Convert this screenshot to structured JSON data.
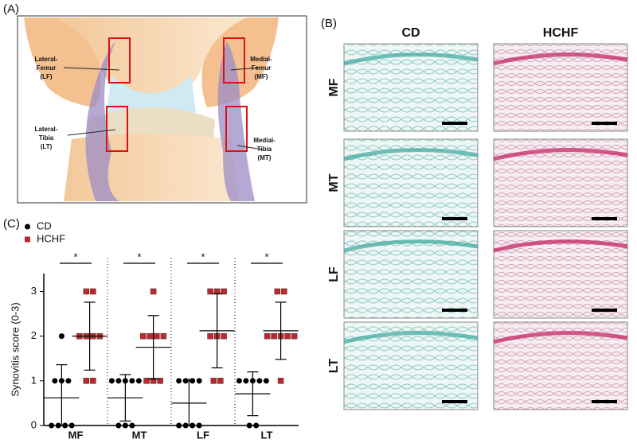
{
  "panel_a": {
    "label": "(A)",
    "regions": [
      {
        "lines": [
          "Lateral-",
          "Femur",
          "(LF)"
        ]
      },
      {
        "lines": [
          "Medial-",
          "Femur",
          "(MF)"
        ]
      },
      {
        "lines": [
          "Lateral-",
          "Tibia",
          "(LT)"
        ]
      },
      {
        "lines": [
          "Medial-",
          "Tibia",
          "(MT)"
        ]
      }
    ]
  },
  "panel_b": {
    "label": "(B)",
    "columns": [
      "CD",
      "HCHF"
    ],
    "rows": [
      "MF",
      "MT",
      "LF",
      "LT"
    ]
  },
  "chart_data": {
    "type": "dot",
    "panel_label": "(C)",
    "ylabel": "Synovitis score (0-3)",
    "categories": [
      "MF",
      "MT",
      "LF",
      "LT"
    ],
    "ylim": [
      0,
      3.4
    ],
    "yticks": [
      0,
      1,
      2,
      3
    ],
    "significance": [
      "*",
      "*",
      "*",
      "*"
    ],
    "legend": "top-left",
    "series": [
      {
        "name": "CD",
        "color": "#000000",
        "marker": "circle",
        "values": [
          [
            2,
            1,
            1,
            1,
            0,
            0,
            0,
            0
          ],
          [
            1,
            1,
            1,
            1,
            1,
            0,
            0,
            0
          ],
          [
            1,
            1,
            1,
            1,
            0,
            0,
            0,
            0
          ],
          [
            1,
            1,
            1,
            1,
            1,
            0,
            0
          ]
        ],
        "means": [
          0.62,
          0.62,
          0.5,
          0.71
        ],
        "sds": [
          0.74,
          0.52,
          0.53,
          0.49
        ]
      },
      {
        "name": "HCHF",
        "color": "#c0272d",
        "marker": "square",
        "values": [
          [
            3,
            3,
            2,
            2,
            2,
            2,
            1,
            1
          ],
          [
            3,
            2,
            2,
            2,
            2,
            1,
            1,
            1
          ],
          [
            3,
            3,
            3,
            2,
            2,
            2,
            1,
            1
          ],
          [
            3,
            3,
            2,
            2,
            2,
            2,
            2,
            1
          ]
        ],
        "means": [
          2.0,
          1.75,
          2.12,
          2.12
        ],
        "sds": [
          0.76,
          0.71,
          0.83,
          0.64
        ]
      }
    ]
  }
}
